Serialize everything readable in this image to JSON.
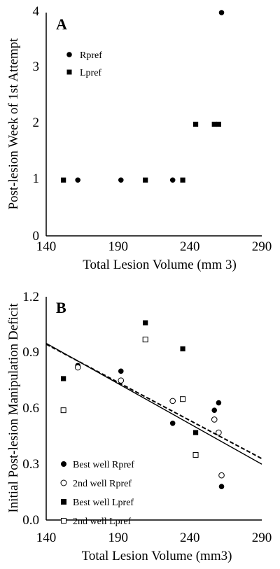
{
  "chart_data": [
    {
      "type": "scatter",
      "panel_label": "A",
      "xlabel": "Total Lesion Volume (mm  3)",
      "ylabel": "Post-lesion Week of 1st Attempt",
      "xlim": [
        140,
        290
      ],
      "ylim": [
        0,
        4
      ],
      "xticks": [
        "140",
        "190",
        "240",
        "290"
      ],
      "yticks": [
        "0",
        "1",
        "2",
        "3",
        "4"
      ],
      "legend_position": "top-left",
      "series": [
        {
          "name": "Rpref",
          "marker": "filled-circle",
          "points": [
            [
              162,
              1
            ],
            [
              192,
              1
            ],
            [
              228,
              1
            ],
            [
              262,
              4
            ]
          ]
        },
        {
          "name": "Lpref",
          "marker": "filled-square",
          "points": [
            [
              152,
              1
            ],
            [
              209,
              1
            ],
            [
              235,
              1
            ],
            [
              244,
              2
            ],
            [
              257,
              2
            ],
            [
              260,
              2
            ]
          ]
        }
      ]
    },
    {
      "type": "scatter",
      "panel_label": "B",
      "xlabel": "Total Lesion Volume (mm3)",
      "ylabel": "Initial Post-lesion Manipulation Deficit",
      "xlim": [
        140,
        290
      ],
      "ylim": [
        0.0,
        1.2
      ],
      "xticks": [
        "140",
        "190",
        "240",
        "290"
      ],
      "yticks": [
        "0.0",
        "0.3",
        "0.6",
        "0.9",
        "1.2"
      ],
      "legend_position": "bottom-left",
      "series": [
        {
          "name": "Best well Rpref",
          "marker": "filled-circle",
          "points": [
            [
              162,
              0.83
            ],
            [
              192,
              0.8
            ],
            [
              228,
              0.52
            ],
            [
              257,
              0.59
            ],
            [
              260,
              0.63
            ],
            [
              262,
              0.18
            ]
          ]
        },
        {
          "name": "2nd well Rpref",
          "marker": "open-circle",
          "points": [
            [
              162,
              0.82
            ],
            [
              192,
              0.75
            ],
            [
              228,
              0.64
            ],
            [
              257,
              0.54
            ],
            [
              260,
              0.47
            ],
            [
              262,
              0.24
            ]
          ]
        },
        {
          "name": "Best well Lpref",
          "marker": "filled-square",
          "points": [
            [
              152,
              0.76
            ],
            [
              209,
              1.06
            ],
            [
              235,
              0.92
            ],
            [
              244,
              0.47
            ]
          ]
        },
        {
          "name": "2nd well Lpref",
          "marker": "open-square",
          "points": [
            [
              152,
              0.59
            ],
            [
              209,
              0.97
            ],
            [
              235,
              0.65
            ],
            [
              244,
              0.35
            ]
          ]
        }
      ],
      "lines": [
        {
          "style": "solid",
          "from": [
            140,
            0.95
          ],
          "to": [
            290,
            0.3
          ]
        },
        {
          "style": "dashed",
          "from": [
            140,
            0.945
          ],
          "to": [
            290,
            0.33
          ]
        }
      ]
    }
  ]
}
